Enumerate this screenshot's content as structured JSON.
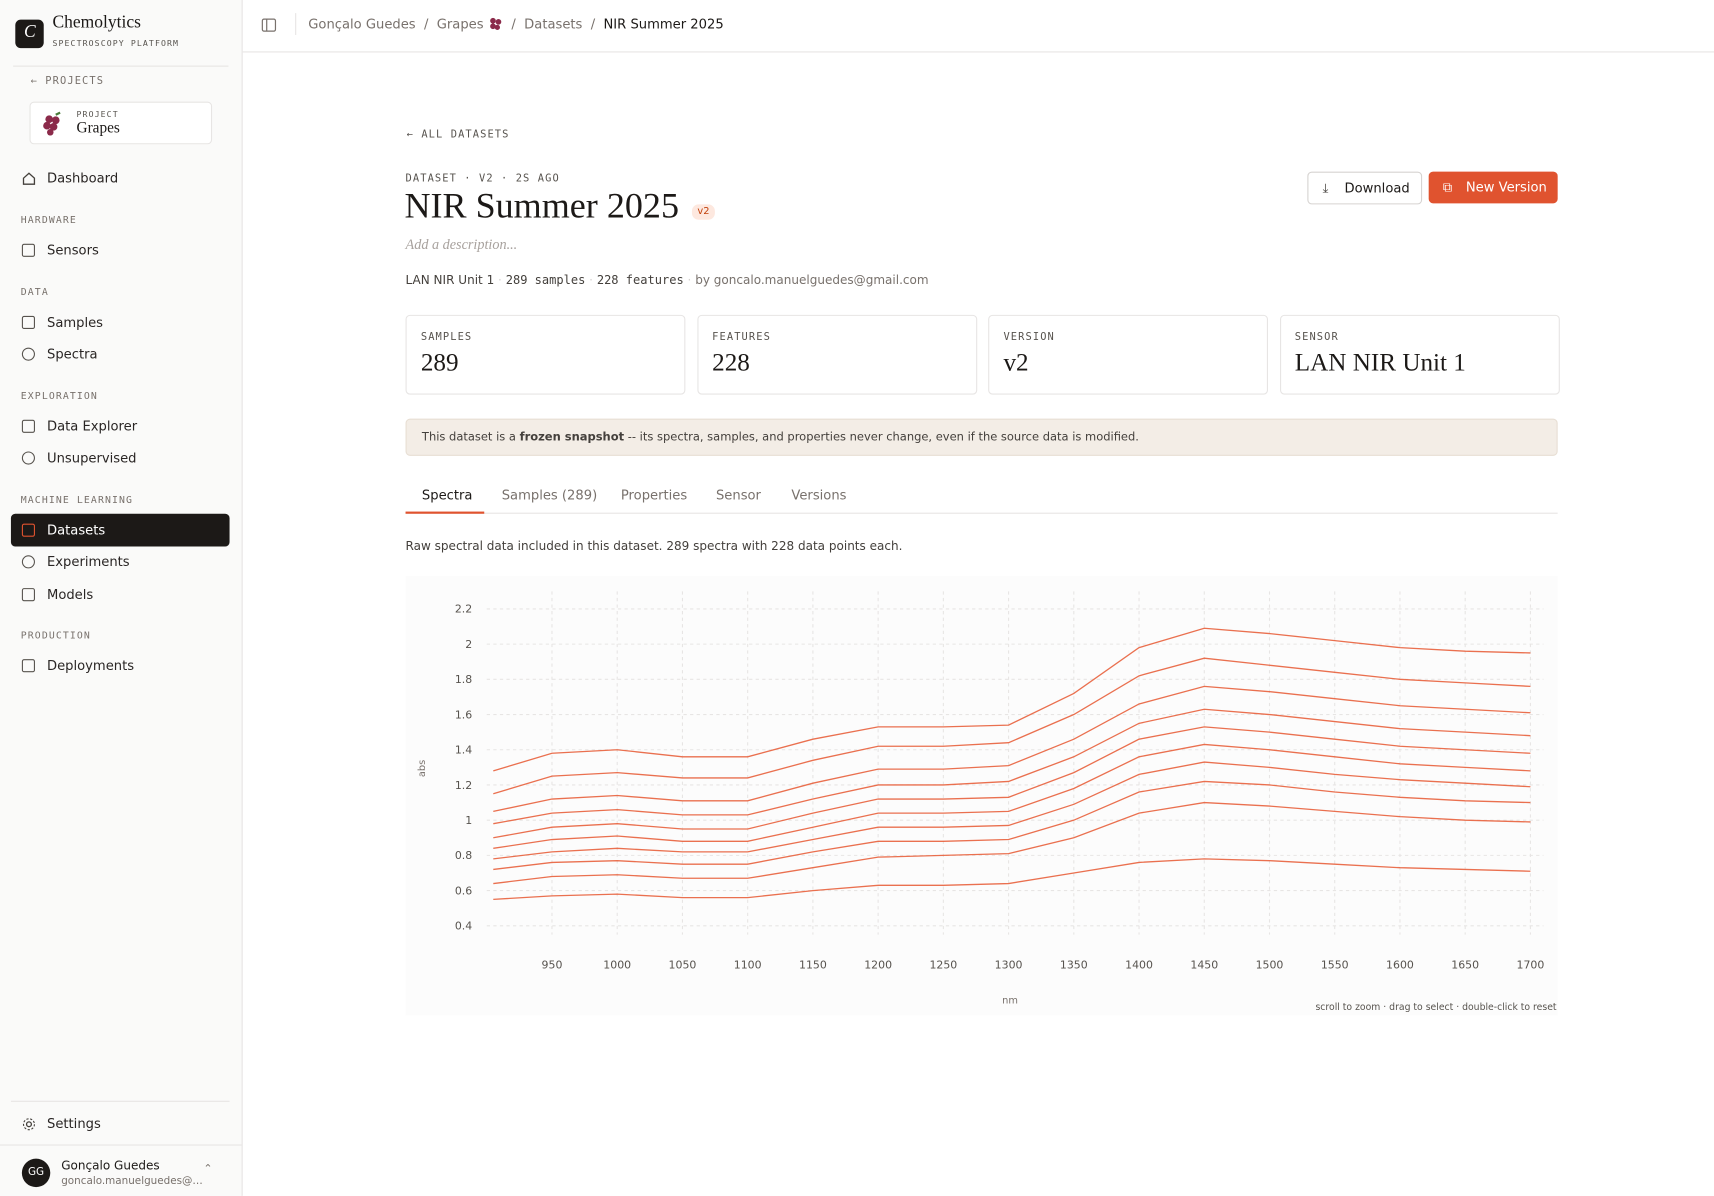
{
  "sidebar": {
    "brand": "Chemolytics",
    "tagline": "SPECTROSCOPY PLATFORM",
    "back": "PROJECTS",
    "project_label": "PROJECT",
    "project_name": "Grapes",
    "dashboard": "Dashboard",
    "sections": [
      {
        "heading": "HARDWARE",
        "items": [
          "Sensors"
        ]
      },
      {
        "heading": "DATA",
        "items": [
          "Samples",
          "Spectra"
        ]
      },
      {
        "heading": "EXPLORATION",
        "items": [
          "Data Explorer",
          "Unsupervised"
        ]
      },
      {
        "heading": "MACHINE LEARNING",
        "items": [
          "Datasets",
          "Experiments",
          "Models"
        ]
      },
      {
        "heading": "PRODUCTION",
        "items": [
          "Deployments"
        ]
      }
    ],
    "settings": "Settings",
    "user": {
      "initials": "GG",
      "name": "Gonçalo Guedes",
      "email": "goncalo.manuelguedes@…"
    }
  },
  "breadcrumbs": [
    "Gonçalo Guedes",
    "Grapes",
    "Datasets",
    "NIR Summer 2025"
  ],
  "header": {
    "back": "ALL DATASETS",
    "eyebrow": "DATASET · V2 · 2S AGO",
    "title": "NIR Summer 2025",
    "badge": "v2",
    "description": "Add a description...",
    "meta": [
      "LAN NIR Unit 1",
      "289 samples",
      "228 features",
      "by goncalo.manuelguedes@gmail.com"
    ],
    "buttons": [
      "Download",
      "New Version"
    ]
  },
  "stats": [
    {
      "label": "SAMPLES",
      "value": 289
    },
    {
      "label": "FEATURES",
      "value": 228
    },
    {
      "label": "VERSION",
      "value": "v2"
    },
    {
      "label": "SENSOR",
      "value": "LAN NIR Unit 1"
    }
  ],
  "notice": {
    "before": "This dataset is a ",
    "bold": "frozen snapshot",
    "after": " -- its spectra, samples, and properties never change, even if the source data is modified."
  },
  "tabs": [
    "Spectra",
    "Samples (289)",
    "Properties",
    "Sensor",
    "Versions"
  ],
  "tab_description": "Raw spectral data included in this dataset. 289 spectra with 228 data points each.",
  "chart_data": {
    "type": "line",
    "x_label": "nm",
    "y_label": "abs",
    "hint": "scroll to zoom · drag to select · double-click to reset",
    "color": "#e8603c",
    "grid": true,
    "xlim": [
      900,
      1710
    ],
    "xticks": [
      950,
      1000,
      1050,
      1100,
      1150,
      1200,
      1250,
      1300,
      1350,
      1400,
      1450,
      1500,
      1550,
      1600,
      1650,
      1700
    ],
    "ylim": [
      0.35,
      2.25
    ],
    "yticks": [
      0.4,
      0.6,
      0.8,
      1,
      1.2,
      1.4,
      1.6,
      1.8,
      2,
      2.2
    ],
    "x": [
      905,
      950,
      1000,
      1050,
      1100,
      1150,
      1200,
      1250,
      1300,
      1350,
      1400,
      1450,
      1500,
      1550,
      1600,
      1650,
      1700
    ],
    "series": [
      {
        "values": [
          1.28,
          1.38,
          1.4,
          1.36,
          1.36,
          1.46,
          1.53,
          1.53,
          1.54,
          1.72,
          1.98,
          2.09,
          2.06,
          2.02,
          1.98,
          1.96,
          1.95
        ]
      },
      {
        "values": [
          1.15,
          1.25,
          1.27,
          1.24,
          1.24,
          1.34,
          1.42,
          1.42,
          1.44,
          1.6,
          1.82,
          1.92,
          1.88,
          1.84,
          1.8,
          1.78,
          1.76
        ]
      },
      {
        "values": [
          1.05,
          1.12,
          1.14,
          1.11,
          1.11,
          1.21,
          1.29,
          1.29,
          1.31,
          1.46,
          1.66,
          1.76,
          1.73,
          1.69,
          1.65,
          1.63,
          1.61
        ]
      },
      {
        "values": [
          0.98,
          1.04,
          1.06,
          1.03,
          1.03,
          1.12,
          1.2,
          1.2,
          1.22,
          1.36,
          1.55,
          1.63,
          1.6,
          1.56,
          1.52,
          1.5,
          1.48
        ]
      },
      {
        "values": [
          0.9,
          0.96,
          0.98,
          0.95,
          0.95,
          1.04,
          1.12,
          1.12,
          1.13,
          1.27,
          1.46,
          1.53,
          1.5,
          1.46,
          1.42,
          1.4,
          1.38
        ]
      },
      {
        "values": [
          0.84,
          0.89,
          0.91,
          0.88,
          0.88,
          0.96,
          1.04,
          1.04,
          1.05,
          1.18,
          1.36,
          1.43,
          1.4,
          1.36,
          1.32,
          1.3,
          1.28
        ]
      },
      {
        "values": [
          0.78,
          0.82,
          0.84,
          0.82,
          0.82,
          0.89,
          0.96,
          0.96,
          0.97,
          1.09,
          1.26,
          1.33,
          1.3,
          1.26,
          1.23,
          1.21,
          1.19
        ]
      },
      {
        "values": [
          0.72,
          0.76,
          0.77,
          0.75,
          0.75,
          0.82,
          0.88,
          0.88,
          0.89,
          1.0,
          1.16,
          1.22,
          1.2,
          1.16,
          1.13,
          1.11,
          1.1
        ]
      },
      {
        "values": [
          0.64,
          0.68,
          0.69,
          0.67,
          0.67,
          0.73,
          0.79,
          0.8,
          0.81,
          0.9,
          1.04,
          1.1,
          1.08,
          1.05,
          1.02,
          1.0,
          0.99
        ]
      },
      {
        "values": [
          0.55,
          0.57,
          0.58,
          0.56,
          0.56,
          0.6,
          0.63,
          0.63,
          0.64,
          0.7,
          0.76,
          0.78,
          0.77,
          0.75,
          0.73,
          0.72,
          0.71
        ]
      }
    ]
  }
}
